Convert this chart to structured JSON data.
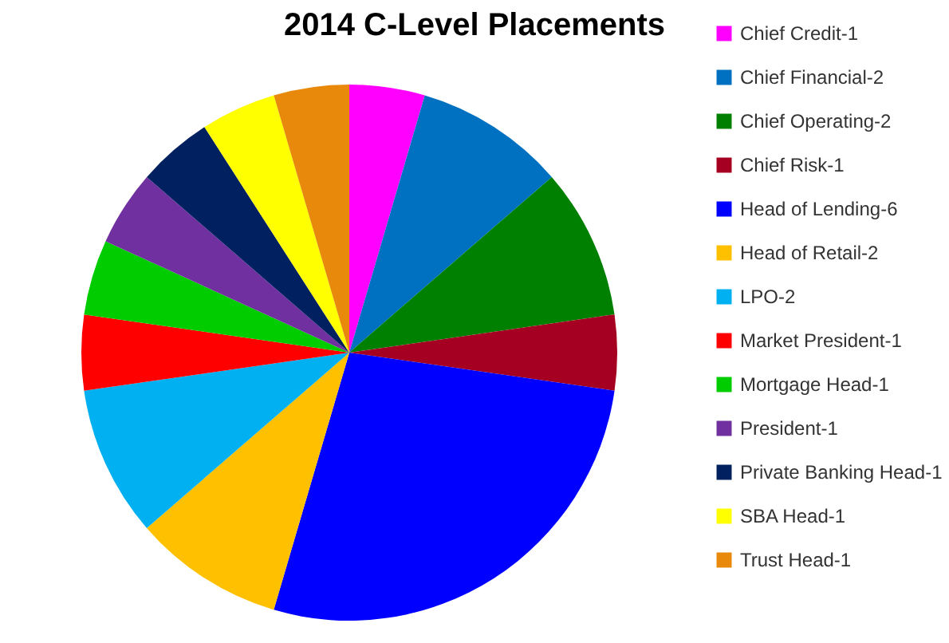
{
  "chart_data": {
    "type": "pie",
    "title": "2014 C-Level Placements",
    "categories": [
      "Chief Credit-1",
      "Chief Financial-2",
      "Chief Operating-2",
      "Chief Risk-1",
      "Head of Lending-6",
      "Head of Retail-2",
      "LPO-2",
      "Market President-1",
      "Mortgage Head-1",
      "President-1",
      "Private Banking Head-1",
      "SBA Head-1",
      "Trust Head-1"
    ],
    "values": [
      4.545,
      9.09,
      9.09,
      4.545,
      27.28,
      9.09,
      9.09,
      4.545,
      4.545,
      4.545,
      4.545,
      4.545,
      4.545
    ],
    "colors": [
      "#ff00ff",
      "#0070c0",
      "#008000",
      "#a50021",
      "#0000ff",
      "#ffc000",
      "#00b0f0",
      "#ff0000",
      "#00cc00",
      "#7030a0",
      "#002060",
      "#ffff00",
      "#e8890c"
    ],
    "legend": "right"
  }
}
